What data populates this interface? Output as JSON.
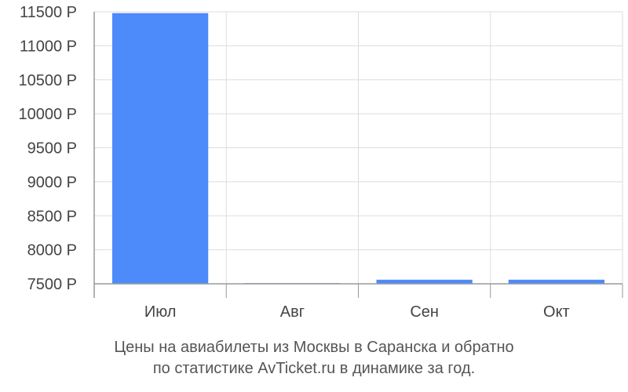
{
  "chart_data": {
    "type": "bar",
    "categories": [
      "Июл",
      "Авг",
      "Сен",
      "Окт"
    ],
    "values": [
      11480,
      7510,
      7560,
      7560
    ],
    "ylim": [
      7500,
      11500
    ],
    "yticks": [
      7500,
      8000,
      8500,
      9000,
      9500,
      10000,
      10500,
      11000,
      11500
    ],
    "ytick_labels": [
      "7500 Р",
      "8000 Р",
      "8500 Р",
      "9000 Р",
      "9500 Р",
      "10000 Р",
      "10500 Р",
      "11000 Р",
      "11500 Р"
    ],
    "grid": true,
    "bar_color": "#4d8afa",
    "grid_color": "#dddddd",
    "axis_color": "#999999"
  },
  "caption": {
    "line1": "Цены на авиабилеты из Москвы в Саранска и обратно",
    "line2": "по статистике AvTicket.ru в динамике за год."
  }
}
